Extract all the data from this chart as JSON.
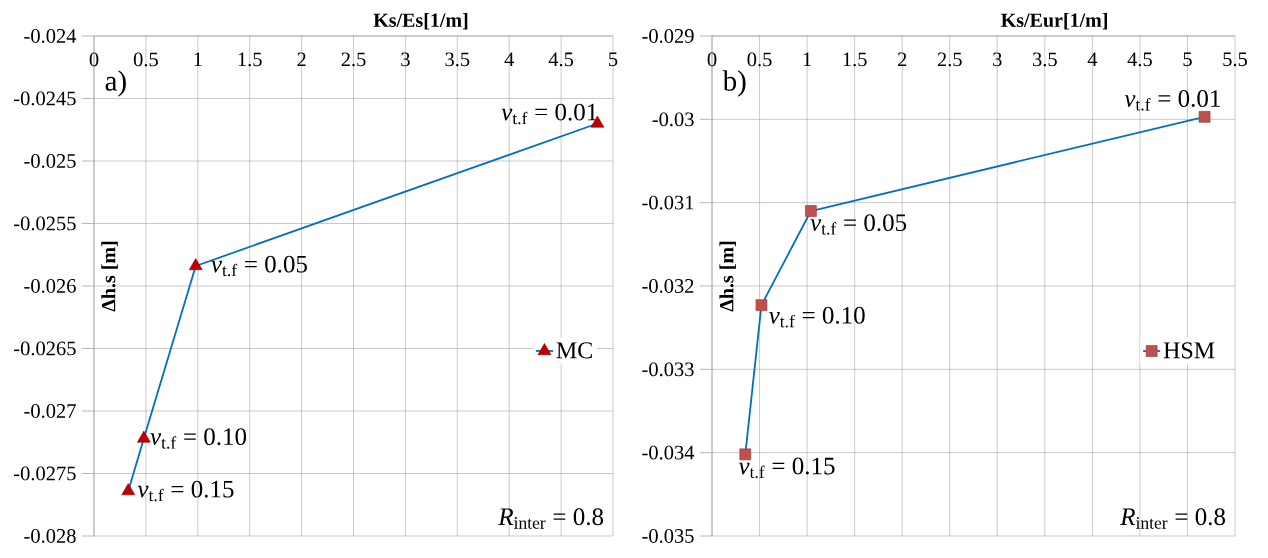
{
  "chart_data": [
    {
      "type": "line",
      "title": "a)",
      "xlabel": "Ks/Es[1/m]",
      "ylabel": "Δh.s [m]",
      "x": [
        4.85,
        0.98,
        0.48,
        0.33
      ],
      "series": [
        {
          "name": "MC",
          "color": "#0070c0",
          "colors": [
            "#c00000",
            "#c00000",
            "#c00000",
            "#c00000"
          ],
          "values": [
            -0.0247,
            -0.02584,
            -0.02722,
            -0.02764
          ]
        }
      ],
      "xlim": [
        0,
        5
      ],
      "xticks": [
        0,
        0.5,
        1,
        1.5,
        2,
        2.5,
        3,
        3.5,
        4,
        4.5,
        5
      ],
      "ylim": [
        -0.028,
        -0.024
      ],
      "yticks": [
        -0.028,
        -0.0275,
        -0.027,
        -0.0265,
        -0.026,
        -0.0255,
        -0.025,
        -0.0245,
        -0.024
      ],
      "grid": true,
      "legend": "right",
      "marker": "triangle",
      "line_style": "solid",
      "annotations": [
        {
          "text": "*v*$_{t.f}$ = 0.01",
          "x": 4.85,
          "y": -0.0247
        },
        {
          "text": "*v*$_{t.f}$ = 0.05",
          "x": 0.98,
          "y": -0.02584
        },
        {
          "text": "*v*$_{t.f}$ = 0.10",
          "x": 0.48,
          "y": -0.02722
        },
        {
          "text": "*v*$_{t.f}$ = 0.15",
          "x": 0.33,
          "y": -0.02764
        },
        "*R*$_{inter}$ = 0.8"
      ]
    },
    {
      "type": "line",
      "title": "b)",
      "xlabel": "Ks/Eur[1/m]",
      "ylabel": "Δh.s [m]",
      "x": [
        5.18,
        1.04,
        0.52,
        0.35
      ],
      "series": [
        {
          "name": "HSM",
          "color": "#0070c0",
          "colors": [
            "#c0504d",
            "#c0504d",
            "#c0504d",
            "#c0504d"
          ],
          "values": [
            -0.02997,
            -0.0311,
            -0.03223,
            -0.03402
          ]
        }
      ],
      "xlim": [
        0,
        5.5
      ],
      "xticks": [
        0,
        0.5,
        1,
        1.5,
        2,
        2.5,
        3,
        3.5,
        4,
        4.5,
        5,
        5.5
      ],
      "ylim": [
        -0.035,
        -0.029
      ],
      "yticks": [
        -0.035,
        -0.034,
        -0.033,
        -0.032,
        -0.031,
        -0.03,
        -0.029
      ],
      "grid": true,
      "legend": "right",
      "marker": "square",
      "line_style": "solid",
      "annotations": [
        {
          "text": "*v*$_{t.f}$ = 0.01",
          "x": 5.18,
          "y": -0.02997
        },
        {
          "text": "*v*$_{t.f}$ = 0.05",
          "x": 1.04,
          "y": -0.0311
        },
        {
          "text": "*v*$_{t.f}$ = 0.10",
          "x": 0.52,
          "y": -0.03223
        },
        {
          "text": "*v*$_{t.f}$ = 0.15",
          "x": 0.35,
          "y": -0.03402
        },
        "*R*$_{inter}$ = 0.8"
      ]
    }
  ]
}
